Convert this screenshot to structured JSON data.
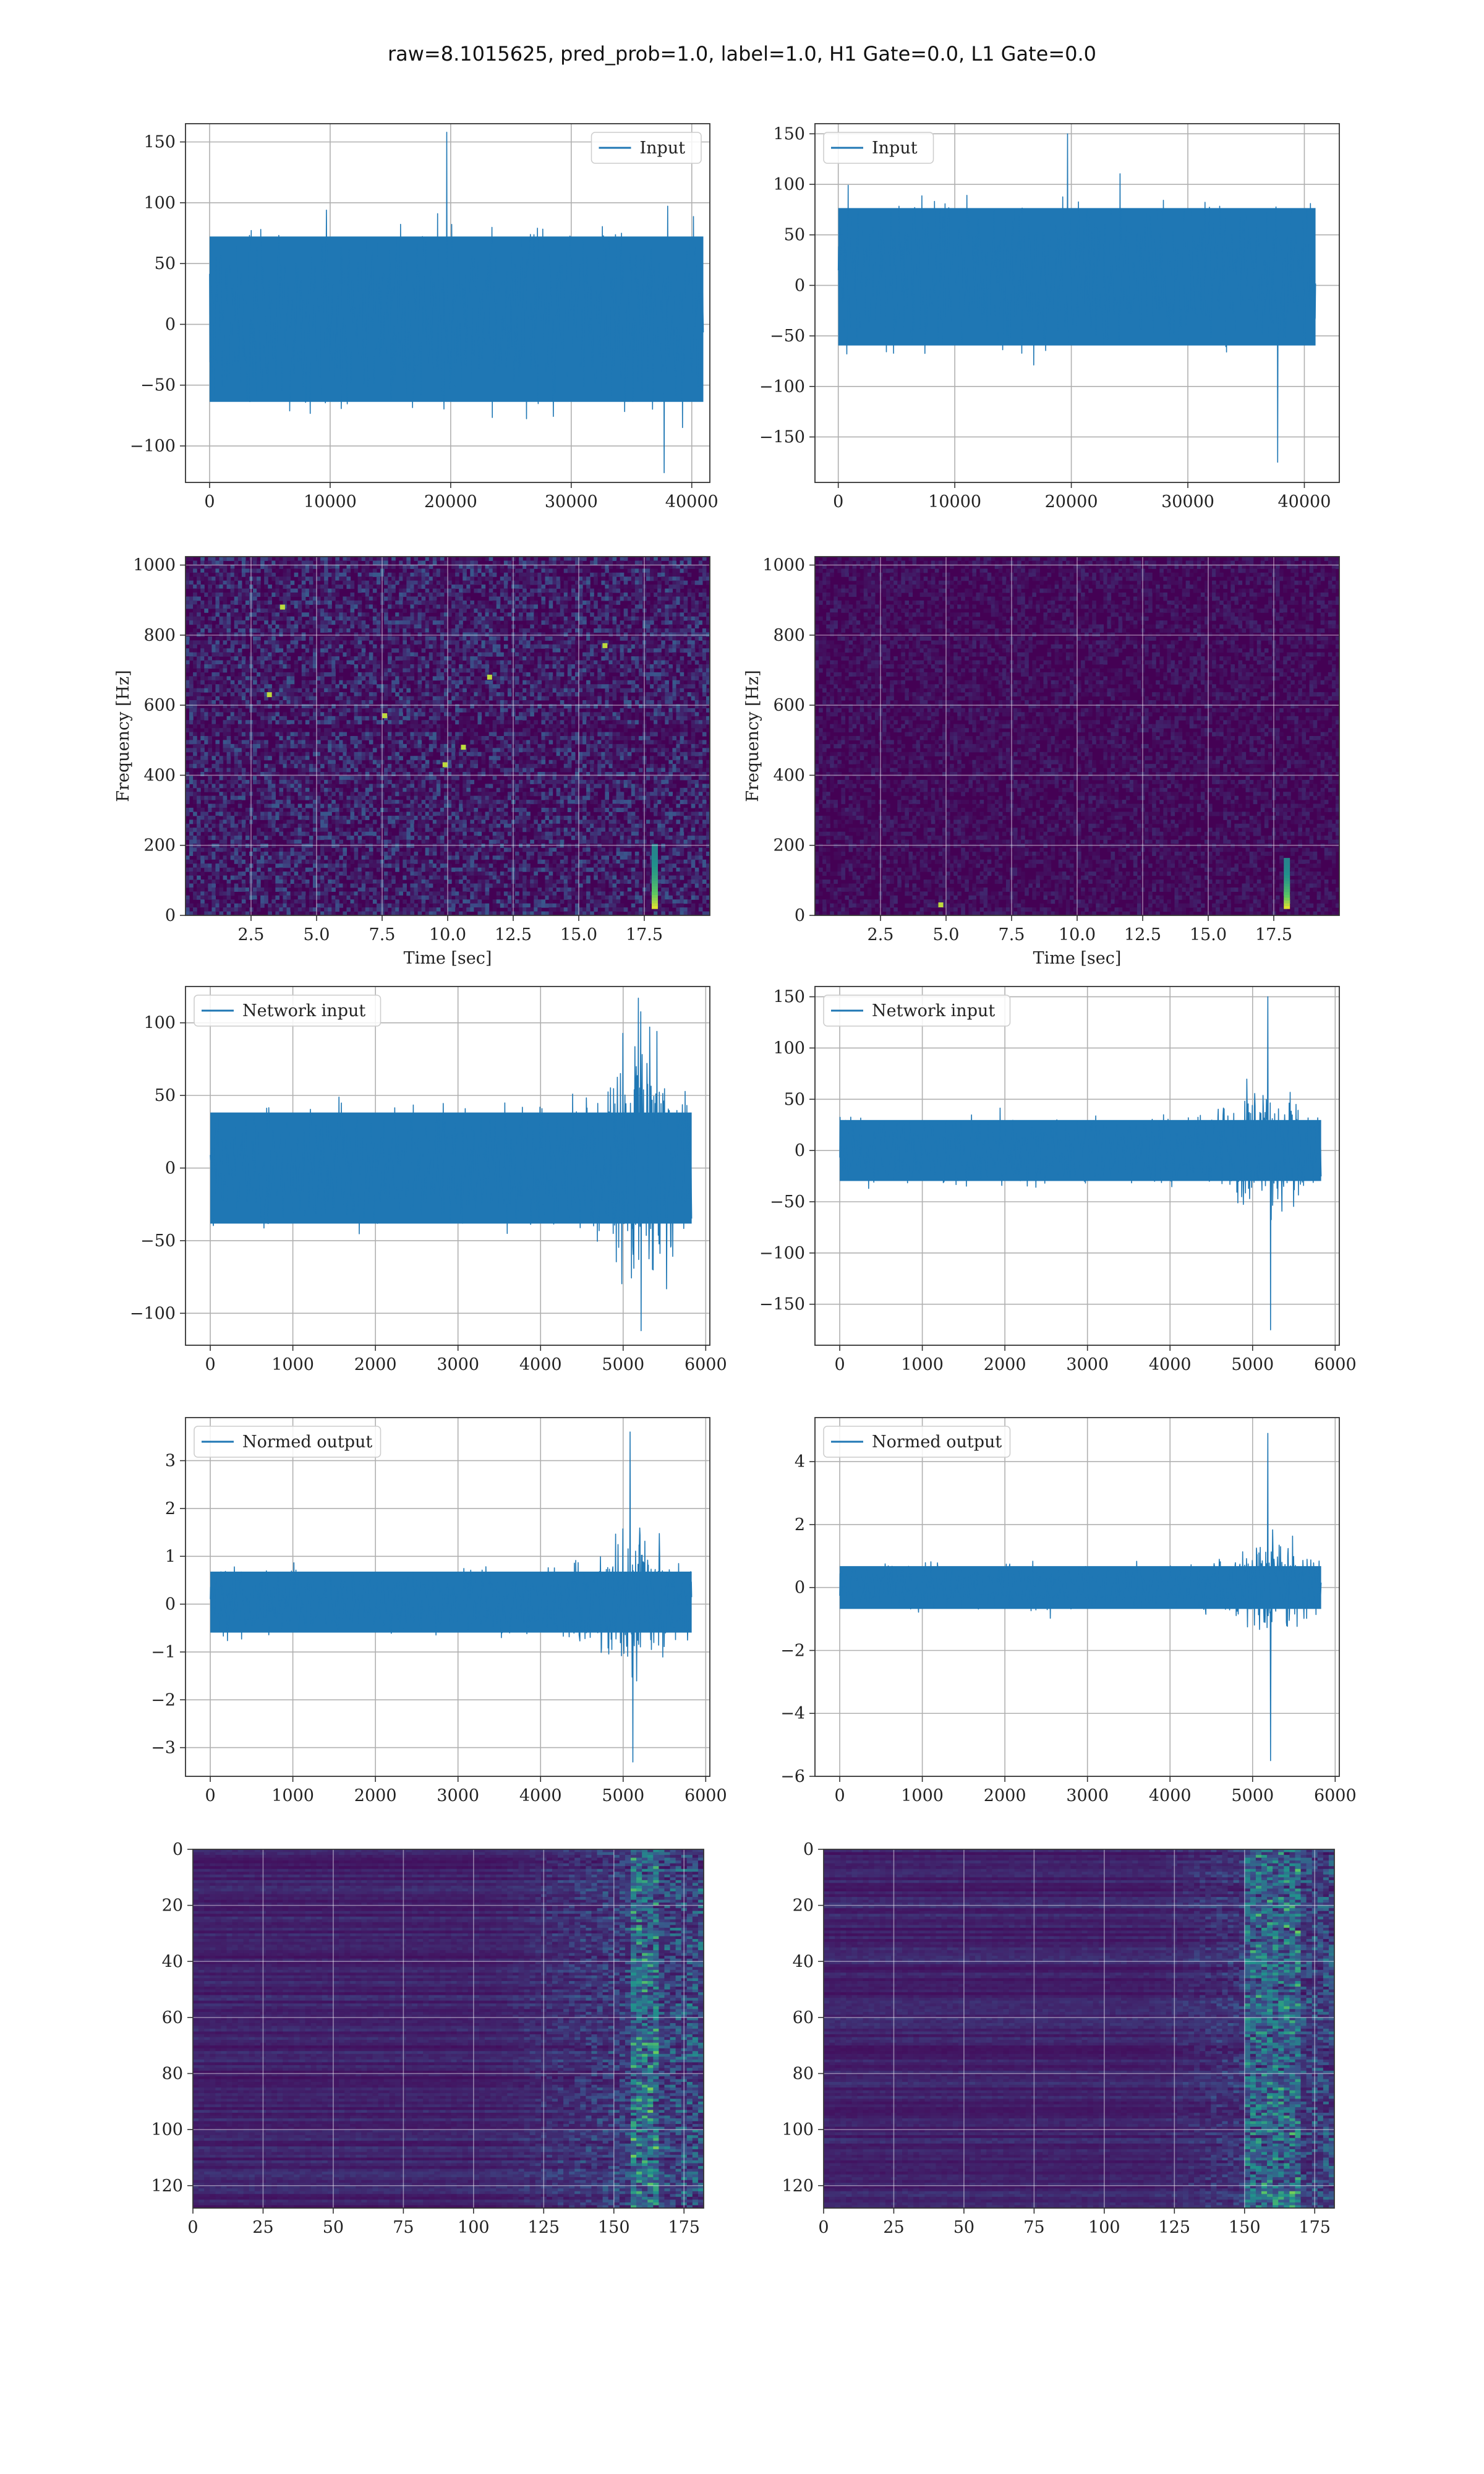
{
  "suptitle": "raw=8.1015625, pred_prob=1.0, label=1.0, H1 Gate=0.0, L1 Gate=0.0",
  "colors": {
    "line": "#1f77b4",
    "grid": "#b0b0b0",
    "frame": "#333333",
    "viridis_low": "#440154",
    "viridis_mid": "#21918c",
    "viridis_high": "#fde725"
  },
  "chart_data": [
    {
      "id": "input-h1",
      "type": "line",
      "legend": "Input",
      "legend_loc": "upper right",
      "xlim": [
        -2000,
        41500
      ],
      "ylim": [
        -130,
        165
      ],
      "xticks": [
        0,
        10000,
        20000,
        30000,
        40000
      ],
      "yticks": [
        -100,
        -50,
        0,
        50,
        100,
        150
      ],
      "signal": {
        "x_range": [
          0,
          40960
        ],
        "core": [
          -75,
          85
        ],
        "extremes_max": 158,
        "extremes_min": -122,
        "burst_x": null
      },
      "grid": true
    },
    {
      "id": "input-l1",
      "type": "line",
      "legend": "Input",
      "legend_loc": "upper left",
      "xlim": [
        -2000,
        43000
      ],
      "ylim": [
        -195,
        160
      ],
      "xticks": [
        0,
        10000,
        20000,
        30000,
        40000
      ],
      "yticks": [
        -150,
        -100,
        -50,
        0,
        50,
        100,
        150
      ],
      "signal": {
        "x_range": [
          0,
          40960
        ],
        "core": [
          -70,
          90
        ],
        "extremes_max": 150,
        "extremes_min": -175,
        "burst_x": null
      },
      "grid": true
    },
    {
      "id": "spectrogram-h1",
      "type": "heatmap",
      "xlim": [
        0,
        20
      ],
      "ylim": [
        0,
        1024
      ],
      "xticks": [
        2.5,
        5.0,
        7.5,
        10.0,
        12.5,
        15.0,
        17.5
      ],
      "yticks": [
        0,
        200,
        400,
        600,
        800,
        1000
      ],
      "xlabel": "Time [sec]",
      "ylabel": "Frequency [Hz]",
      "grid": true,
      "chirp": {
        "t": 17.9,
        "f_range": [
          20,
          200
        ]
      },
      "hotspots": [
        [
          3.7,
          880
        ],
        [
          3.2,
          630
        ],
        [
          7.6,
          570
        ],
        [
          10.6,
          480
        ],
        [
          11.6,
          680
        ],
        [
          16.0,
          770
        ],
        [
          9.9,
          430
        ]
      ]
    },
    {
      "id": "spectrogram-l1",
      "type": "heatmap",
      "xlim": [
        0,
        20
      ],
      "ylim": [
        0,
        1024
      ],
      "xticks": [
        2.5,
        5.0,
        7.5,
        10.0,
        12.5,
        15.0,
        17.5
      ],
      "yticks": [
        0,
        200,
        400,
        600,
        800,
        1000
      ],
      "xlabel": "Time [sec]",
      "ylabel": "Frequency [Hz]",
      "grid": true,
      "chirp": {
        "t": 18.0,
        "f_range": [
          20,
          160
        ]
      },
      "hotspots": [
        [
          4.8,
          30
        ]
      ]
    },
    {
      "id": "network-input-h1",
      "type": "line",
      "legend": "Network input",
      "legend_loc": "upper left",
      "xlim": [
        -300,
        6050
      ],
      "ylim": [
        -122,
        125
      ],
      "xticks": [
        0,
        1000,
        2000,
        3000,
        4000,
        5000,
        6000
      ],
      "yticks": [
        -100,
        -50,
        0,
        50,
        100
      ],
      "signal": {
        "x_range": [
          0,
          5830
        ],
        "core": [
          -45,
          45
        ],
        "extremes_max": 117,
        "extremes_min": -112,
        "burst_x": 5200
      },
      "grid": true
    },
    {
      "id": "network-input-l1",
      "type": "line",
      "legend": "Network input",
      "legend_loc": "upper left",
      "xlim": [
        -300,
        6050
      ],
      "ylim": [
        -190,
        160
      ],
      "xticks": [
        0,
        1000,
        2000,
        3000,
        4000,
        5000,
        6000
      ],
      "yticks": [
        -150,
        -100,
        -50,
        0,
        50,
        100,
        150
      ],
      "signal": {
        "x_range": [
          0,
          5830
        ],
        "core": [
          -35,
          35
        ],
        "extremes_max": 150,
        "extremes_min": -175,
        "burst_x": 5200
      },
      "grid": true
    },
    {
      "id": "normed-output-h1",
      "type": "line",
      "legend": "Normed output",
      "legend_loc": "upper left",
      "xlim": [
        -300,
        6050
      ],
      "ylim": [
        -3.6,
        3.9
      ],
      "xticks": [
        0,
        1000,
        2000,
        3000,
        4000,
        5000,
        6000
      ],
      "yticks": [
        -3,
        -2,
        -1,
        0,
        1,
        2,
        3
      ],
      "signal": {
        "x_range": [
          0,
          5830
        ],
        "core": [
          -0.7,
          0.8
        ],
        "extremes_max": 3.6,
        "extremes_min": -3.3,
        "burst_x": 5100
      },
      "grid": true
    },
    {
      "id": "normed-output-l1",
      "type": "line",
      "legend": "Normed output",
      "legend_loc": "upper left",
      "xlim": [
        -300,
        6050
      ],
      "ylim": [
        -6.0,
        5.4
      ],
      "xticks": [
        0,
        1000,
        2000,
        3000,
        4000,
        5000,
        6000
      ],
      "yticks": [
        -6,
        -4,
        -2,
        0,
        2,
        4
      ],
      "signal": {
        "x_range": [
          0,
          5830
        ],
        "core": [
          -0.8,
          0.8
        ],
        "extremes_max": 4.9,
        "extremes_min": -5.5,
        "burst_x": 5200
      },
      "grid": true
    },
    {
      "id": "feature-map-h1",
      "type": "heatmap",
      "xlim": [
        0,
        182
      ],
      "ylim": [
        128,
        0
      ],
      "xticks": [
        0,
        25,
        50,
        75,
        100,
        125,
        150,
        175
      ],
      "yticks": [
        0,
        20,
        40,
        60,
        80,
        100,
        120
      ],
      "grid": true,
      "activity_start": 105,
      "hot_columns": [
        155,
        165
      ]
    },
    {
      "id": "feature-map-l1",
      "type": "heatmap",
      "xlim": [
        0,
        182
      ],
      "ylim": [
        128,
        0
      ],
      "xticks": [
        0,
        25,
        50,
        75,
        100,
        125,
        150,
        175
      ],
      "yticks": [
        0,
        20,
        40,
        60,
        80,
        100,
        120
      ],
      "grid": true,
      "activity_start": 115,
      "hot_columns": [
        150,
        168
      ]
    }
  ]
}
